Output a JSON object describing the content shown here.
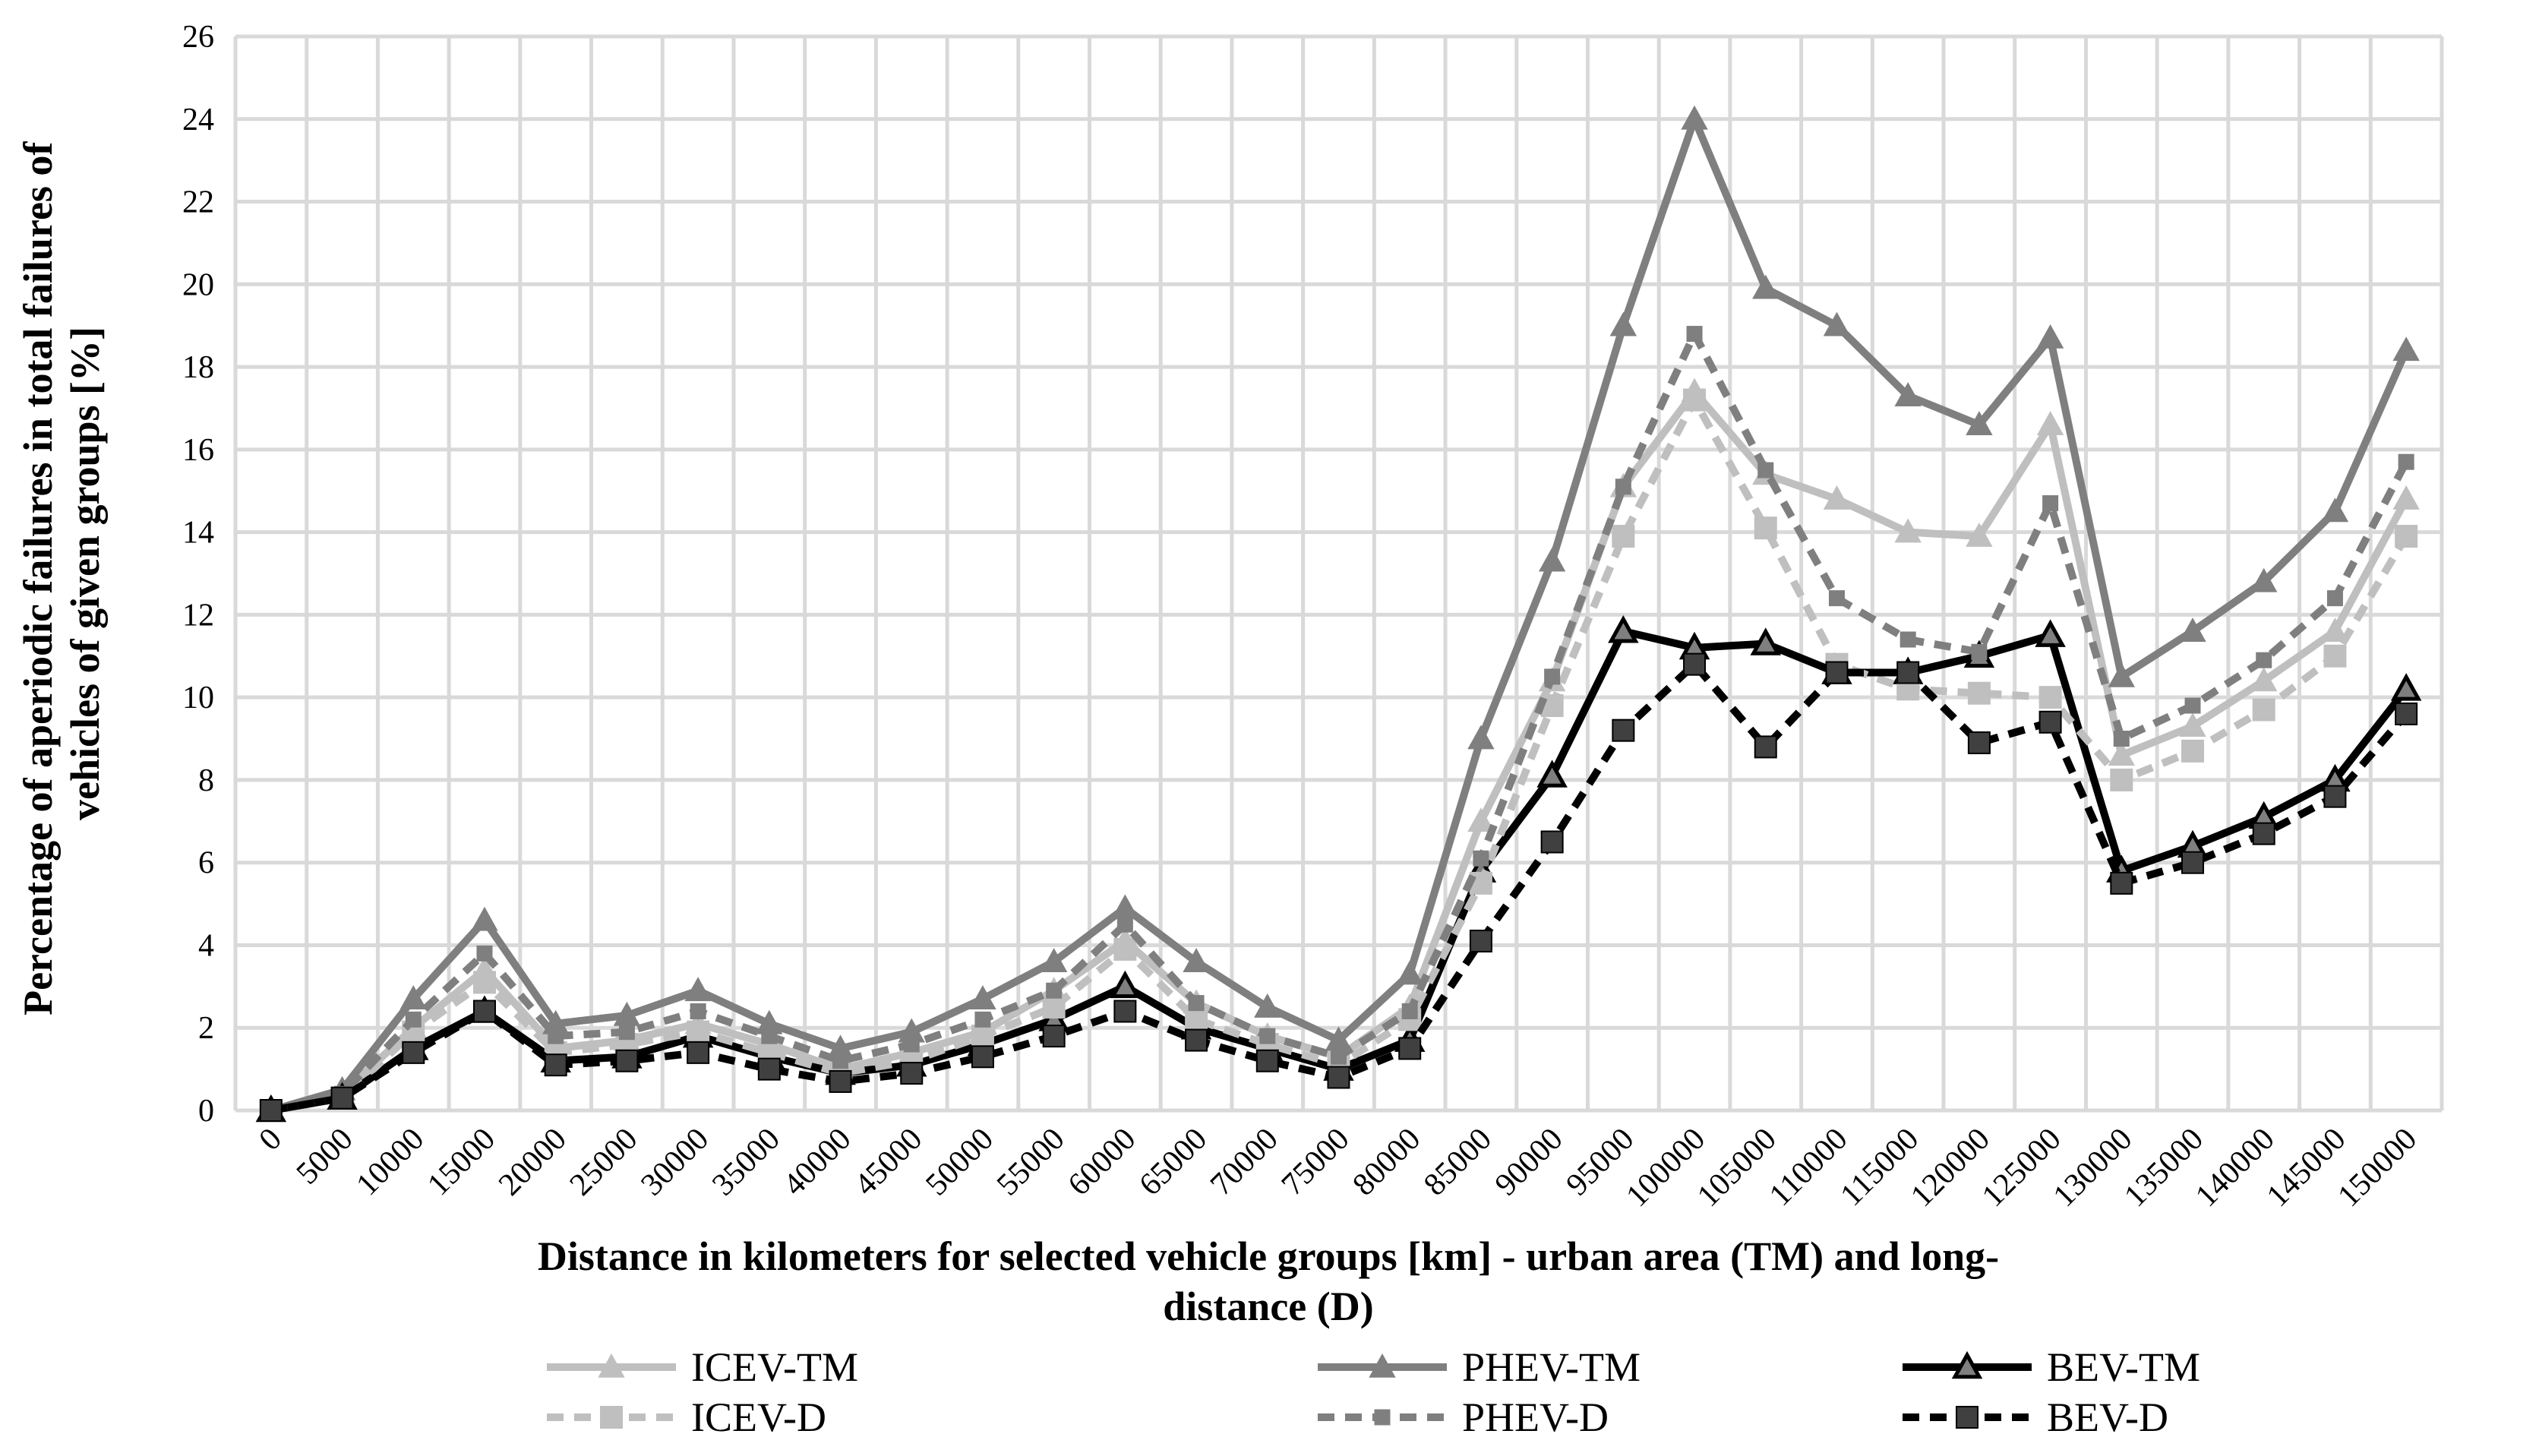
{
  "chart_data": {
    "type": "line",
    "title": "",
    "ylabel": "Percentage of aperiodic failures in total failures of vehicles of given groups [%]",
    "ylabel_lines": [
      "Percentage of aperiodic failures in total failures of",
      "vehicles of given groups [%]"
    ],
    "xlabel": "Distance in kilometers for selected vehicle groups [km] - urban area (TM) and long-distance (D)",
    "xlabel_lines": [
      "Distance in kilometers for selected vehicle groups [km] - urban area (TM) and long-",
      "distance (D)"
    ],
    "ylim": [
      0,
      26
    ],
    "yticks": [
      0,
      2,
      4,
      6,
      8,
      10,
      12,
      14,
      16,
      18,
      20,
      22,
      24,
      26
    ],
    "grid": true,
    "legend_position": "bottom",
    "categories": [
      "0",
      "5000",
      "10000",
      "15000",
      "20000",
      "25000",
      "30000",
      "35000",
      "40000",
      "45000",
      "50000",
      "55000",
      "60000",
      "65000",
      "70000",
      "75000",
      "80000",
      "85000",
      "90000",
      "95000",
      "100000",
      "105000",
      "110000",
      "115000",
      "120000",
      "125000",
      "130000",
      "135000",
      "140000",
      "145000",
      "150000"
    ],
    "series": [
      {
        "name": "ICEV-TM",
        "color": "#bfbfbf",
        "dash": "solid",
        "marker": "triangle",
        "values": [
          0,
          0.4,
          2.0,
          3.4,
          1.5,
          1.7,
          2.1,
          1.6,
          1.0,
          1.4,
          1.9,
          2.9,
          4.1,
          2.6,
          1.8,
          1.3,
          2.5,
          7.0,
          10.4,
          15.1,
          17.4,
          15.4,
          14.8,
          14.0,
          13.9,
          16.6,
          8.6,
          9.3,
          10.4,
          11.6,
          14.8
        ]
      },
      {
        "name": "PHEV-TM",
        "color": "#7f7f7f",
        "dash": "solid",
        "marker": "triangle",
        "values": [
          0,
          0.5,
          2.7,
          4.6,
          2.1,
          2.3,
          2.9,
          2.1,
          1.5,
          1.9,
          2.7,
          3.6,
          4.9,
          3.6,
          2.5,
          1.7,
          3.3,
          9.0,
          13.3,
          19.0,
          24.0,
          19.9,
          19.0,
          17.3,
          16.6,
          18.7,
          10.5,
          11.6,
          12.8,
          14.5,
          18.4
        ]
      },
      {
        "name": "BEV-TM",
        "color": "#000000",
        "dash": "solid",
        "marker": "triangle-outline",
        "values": [
          0,
          0.3,
          1.5,
          2.4,
          1.2,
          1.3,
          1.8,
          1.3,
          0.9,
          1.1,
          1.6,
          2.2,
          3.0,
          2.0,
          1.5,
          1.0,
          1.7,
          5.8,
          8.1,
          11.6,
          11.2,
          11.3,
          10.6,
          10.6,
          11.0,
          11.5,
          5.8,
          6.4,
          7.1,
          8.0,
          10.2
        ]
      },
      {
        "name": "ICEV-D",
        "color": "#bfbfbf",
        "dash": "dashed",
        "marker": "square",
        "values": [
          0,
          0.3,
          1.9,
          3.1,
          1.4,
          1.6,
          1.9,
          1.4,
          0.9,
          1.2,
          1.8,
          2.5,
          3.9,
          2.2,
          1.6,
          1.1,
          2.2,
          5.5,
          9.8,
          13.9,
          17.2,
          14.1,
          10.8,
          10.2,
          10.1,
          10.0,
          8.0,
          8.7,
          9.7,
          11.0,
          13.9
        ]
      },
      {
        "name": "PHEV-D",
        "color": "#7f7f7f",
        "dash": "dashed",
        "marker": "small-square",
        "values": [
          0,
          0.4,
          2.2,
          3.8,
          1.8,
          1.9,
          2.4,
          1.8,
          1.2,
          1.6,
          2.2,
          2.9,
          4.5,
          2.6,
          1.8,
          1.3,
          2.4,
          6.1,
          10.5,
          15.1,
          18.8,
          15.5,
          12.4,
          11.4,
          11.1,
          14.7,
          9.0,
          9.8,
          10.9,
          12.4,
          15.7
        ]
      },
      {
        "name": "BEV-D",
        "color": "#000000",
        "dash": "dashed",
        "marker": "square",
        "values": [
          0,
          0.3,
          1.4,
          2.4,
          1.1,
          1.2,
          1.4,
          1.0,
          0.7,
          0.9,
          1.3,
          1.8,
          2.4,
          1.7,
          1.2,
          0.8,
          1.5,
          4.1,
          6.5,
          9.2,
          10.8,
          8.8,
          10.6,
          10.6,
          8.9,
          9.4,
          5.5,
          6.0,
          6.7,
          7.6,
          9.6
        ]
      }
    ]
  }
}
